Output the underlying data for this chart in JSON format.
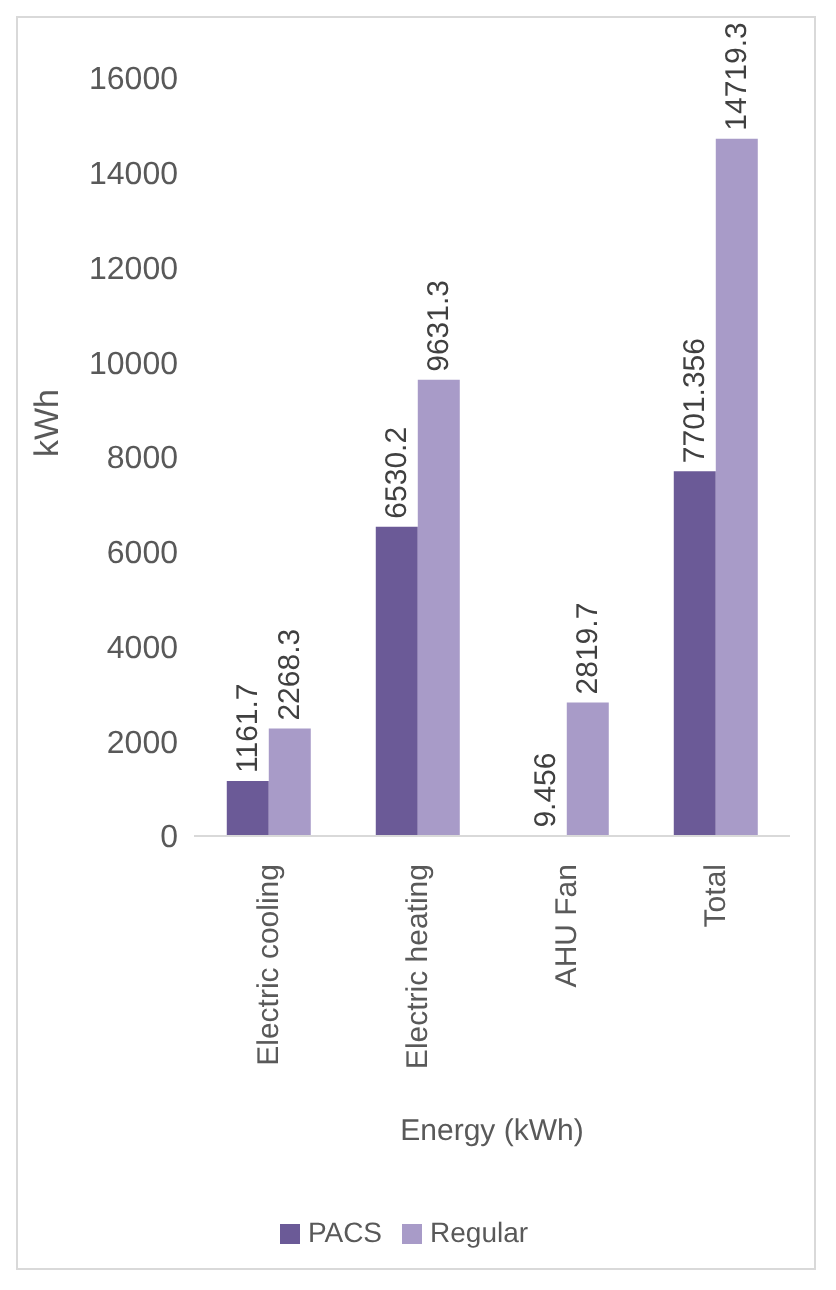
{
  "chart_data": {
    "type": "bar",
    "xlabel": "Energy (kWh)",
    "ylabel": "kWh",
    "categories": [
      "Electric cooling",
      "Electric heating",
      "AHU Fan",
      "Total"
    ],
    "series": [
      {
        "name": "PACS",
        "color": "#6b5a97",
        "values": [
          1161.7,
          6530.2,
          9.456,
          7701.356
        ]
      },
      {
        "name": "Regular",
        "color": "#a89bc8",
        "values": [
          2268.3,
          9631.3,
          2819.7,
          14719.3
        ]
      }
    ],
    "ylim": [
      0,
      16000
    ],
    "yticks": [
      0,
      2000,
      4000,
      6000,
      8000,
      10000,
      12000,
      14000,
      16000
    ],
    "grid": false,
    "legend": "bottom",
    "data_labels": true
  }
}
